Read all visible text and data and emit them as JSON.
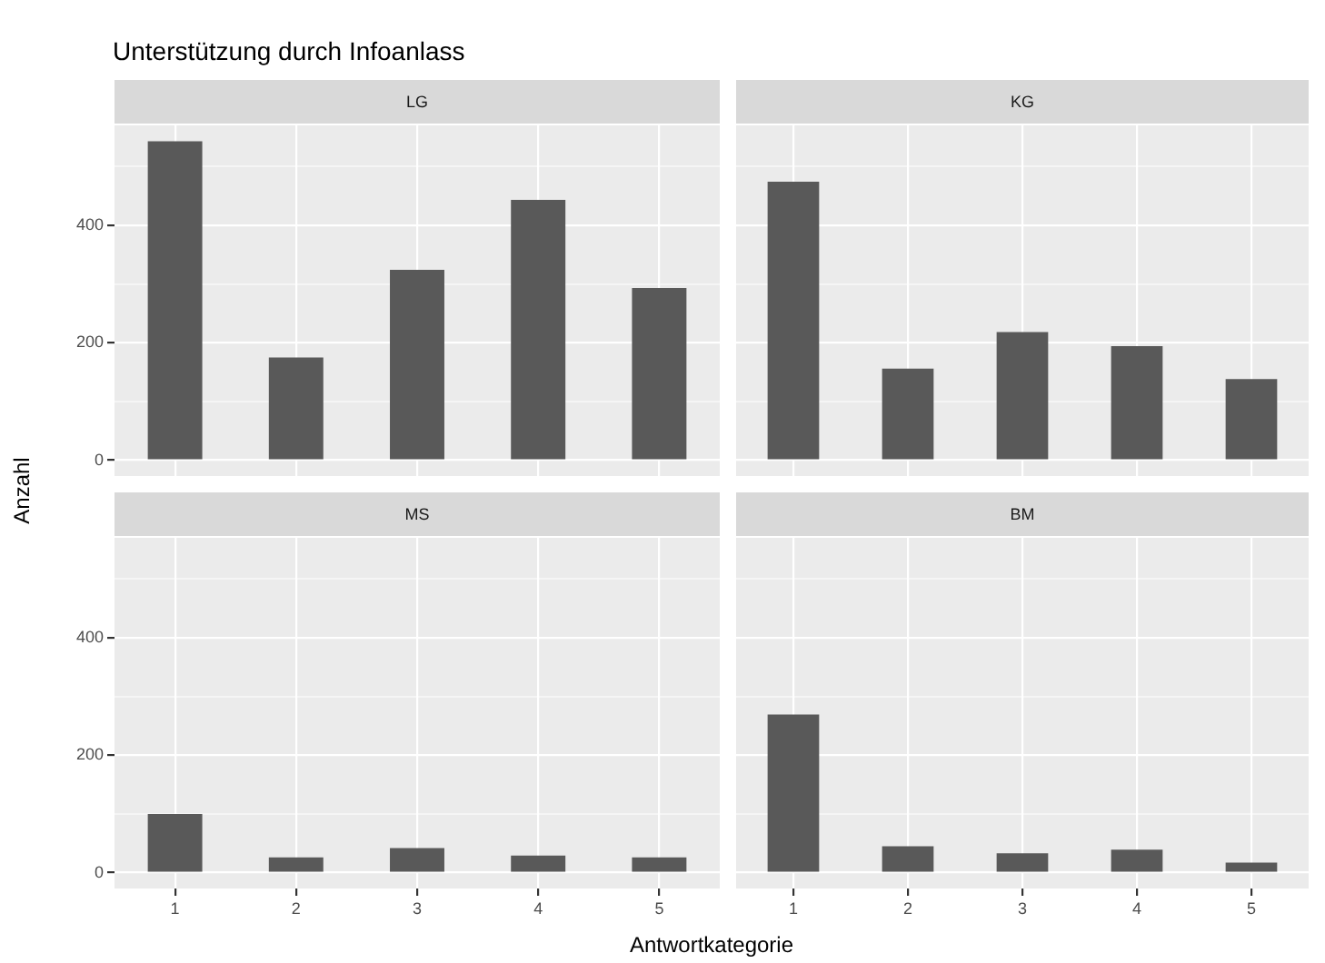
{
  "chart_data": [
    {
      "type": "bar",
      "title": "Unterstützung durch Infoanlass",
      "subtitle": "LG",
      "ylabel": "Anzahl",
      "categories": [
        "1",
        "2",
        "3",
        "4",
        "5"
      ],
      "values": [
        543,
        175,
        324,
        443,
        293
      ],
      "color": "#595959",
      "ylim": [
        -27,
        570
      ],
      "yticks": [
        0,
        {
          "value": 100,
          "label": null
        },
        200,
        {
          "value": 300,
          "label": null
        },
        400,
        {
          "value": 500,
          "label": null
        }
      ],
      "grid": true,
      "tick_labels": "y"
    },
    {
      "type": "bar",
      "subtitle": "KG",
      "categories": [
        "1",
        "2",
        "3",
        "4",
        "5"
      ],
      "values": [
        474,
        156,
        218,
        194,
        138
      ],
      "color": "#595959",
      "ylim": [
        -27,
        570
      ],
      "yticks": [
        0,
        {
          "value": 100,
          "label": null
        },
        200,
        {
          "value": 300,
          "label": null
        },
        400,
        {
          "value": 500,
          "label": null
        }
      ],
      "grid": true,
      "tick_labels": false
    },
    {
      "type": "bar",
      "subtitle": "MS",
      "xlabel": "Antwortkategorie",
      "categories": [
        "1",
        "2",
        "3",
        "4",
        "5"
      ],
      "values": [
        100,
        26,
        42,
        29,
        26
      ],
      "color": "#595959",
      "ylim": [
        -27,
        570
      ],
      "yticks": [
        0,
        {
          "value": 100,
          "label": null
        },
        200,
        {
          "value": 300,
          "label": null
        },
        400,
        {
          "value": 500,
          "label": null
        }
      ],
      "grid": true
    },
    {
      "type": "bar",
      "subtitle": "BM",
      "categories": [
        "1",
        "2",
        "3",
        "4",
        "5"
      ],
      "values": [
        269,
        45,
        33,
        39,
        17
      ],
      "color": "#595959",
      "ylim": [
        -27,
        570
      ],
      "yticks": [
        0,
        {
          "value": 100,
          "label": null
        },
        200,
        {
          "value": 300,
          "label": null
        },
        400,
        {
          "value": 500,
          "label": null
        }
      ],
      "grid": true,
      "tick_labels": "x"
    }
  ]
}
